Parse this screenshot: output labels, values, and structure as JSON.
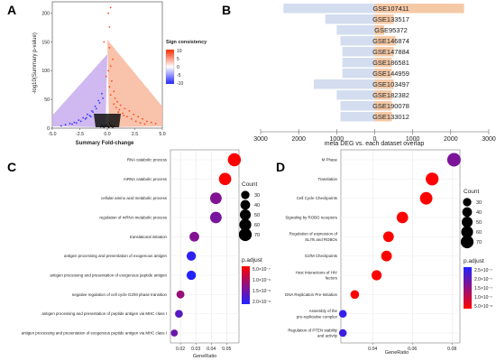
{
  "panels": {
    "a": "A",
    "b": "B",
    "c": "C",
    "d": "D"
  },
  "chart_data": [
    {
      "id": "A",
      "type": "scatter",
      "xlabel": "Summary Fold-change",
      "ylabel": "-log10(Summary p-value)",
      "xlim": [
        -5,
        5
      ],
      "ylim": [
        0,
        220
      ],
      "x_ticks": [
        "-5.0",
        "-2.5",
        "0.0",
        "2.5",
        "5.0"
      ],
      "y_ticks": [
        "0",
        "50",
        "100",
        "150",
        "200"
      ],
      "legend": {
        "title": "Sign consistency",
        "ticks": [
          "10",
          "5",
          "0",
          "-5",
          "-10"
        ],
        "range": [
          -10,
          10
        ],
        "colors": {
          "high": "#ff2a00",
          "mid": "#ffffff",
          "low": "#2222ff"
        }
      },
      "grid": false,
      "series": [
        {
          "points": [
            [
              0.3,
              210
            ],
            [
              0.1,
              200
            ],
            [
              0.2,
              176
            ],
            [
              -0.3,
              150
            ],
            [
              0.2,
              140
            ],
            [
              0.5,
              120
            ],
            [
              0.3,
              108
            ],
            [
              0.1,
              100
            ],
            [
              -0.1,
              90
            ],
            [
              0.4,
              82
            ],
            [
              0.2,
              72
            ],
            [
              0.6,
              64
            ],
            [
              0.3,
              58
            ],
            [
              0.7,
              52
            ],
            [
              0.9,
              46
            ],
            [
              1.2,
              40
            ],
            [
              1.6,
              34
            ],
            [
              2.0,
              30
            ],
            [
              2.4,
              24
            ],
            [
              2.8,
              20
            ],
            [
              3.2,
              16
            ],
            [
              3.6,
              12
            ],
            [
              4.0,
              10
            ],
            [
              4.4,
              8
            ],
            [
              0.8,
              36
            ],
            [
              1.4,
              26
            ],
            [
              1.8,
              20
            ],
            [
              2.2,
              16
            ],
            [
              2.6,
              12
            ],
            [
              3.0,
              9
            ],
            [
              3.4,
              7
            ],
            [
              1.0,
              28
            ],
            [
              1.5,
              22
            ],
            [
              0.6,
              42
            ],
            [
              1.1,
              32
            ]
          ]
        },
        {
          "points": [
            [
              -0.5,
              60
            ],
            [
              -0.8,
              48
            ],
            [
              -1.1,
              38
            ],
            [
              -1.4,
              30
            ],
            [
              -1.8,
              24
            ],
            [
              -2.2,
              18
            ],
            [
              -2.6,
              14
            ],
            [
              -3.0,
              10
            ],
            [
              -3.4,
              8
            ],
            [
              -3.8,
              6
            ],
            [
              -4.2,
              4
            ],
            [
              -1.0,
              34
            ],
            [
              -1.6,
              22
            ],
            [
              -2.0,
              16
            ],
            [
              -2.4,
              12
            ],
            [
              -2.8,
              9
            ],
            [
              -3.2,
              7
            ],
            [
              -0.7,
              44
            ],
            [
              -1.3,
              28
            ],
            [
              -1.9,
              18
            ],
            [
              -0.4,
              52
            ],
            [
              -1.5,
              20
            ]
          ]
        },
        {
          "points": [
            [
              -0.2,
              4
            ],
            [
              0.1,
              2
            ],
            [
              0.3,
              5
            ],
            [
              -0.4,
              3
            ],
            [
              0.5,
              1
            ],
            [
              -0.6,
              2
            ],
            [
              0.2,
              8
            ],
            [
              -0.1,
              6
            ],
            [
              0.4,
              3
            ],
            [
              -0.3,
              1
            ],
            [
              0.6,
              4
            ],
            [
              -0.5,
              5
            ],
            [
              0.0,
              3
            ],
            [
              0.15,
              1
            ]
          ]
        }
      ]
    },
    {
      "id": "B",
      "type": "bar",
      "xlabel": "meta DEG vs. each dataset overlap",
      "x_ticks": [
        "3000",
        "2000",
        "1000",
        "0",
        "1000",
        "2000",
        "3000"
      ],
      "xlim": [
        -3000,
        3000
      ],
      "categories": [
        "GSE107411",
        "GSE133517",
        "GSE95372",
        "GSE146874",
        "GSE147884",
        "GSE186581",
        "GSE144959",
        "GSE103497",
        "GSE182382",
        "GSE190078",
        "GSE133012"
      ],
      "series": [
        {
          "side": "left",
          "color": "#d3ddef",
          "values": [
            2400,
            1300,
            1000,
            900,
            850,
            850,
            850,
            1600,
            1000,
            900,
            900
          ]
        },
        {
          "side": "right",
          "color": "#f5c9a6",
          "values": [
            2350,
            500,
            250,
            550,
            500,
            450,
            450,
            500,
            450,
            450,
            450
          ]
        }
      ]
    },
    {
      "id": "C",
      "type": "scatter",
      "xlabel": "GeneRatio",
      "x_ticks": [
        "0.02",
        "0.03",
        "0.04",
        "0.05"
      ],
      "xlim": [
        0.0135,
        0.058
      ],
      "categories": [
        "RNA catabolic process",
        "mRNA catabolic process",
        "cellular amino acid metabolic process",
        "regulation of mRNA metabolic process",
        "translational initiation",
        "antigen processing and presentation of exogenous antigen",
        "antigen processing and presentation of exogenous peptide antigen",
        "negative regulation of cell cycle G2/M phase transition",
        "antigen processing and presentation of peptide antigen via MHC class I",
        "antigen processing and presentation of exogenous peptide antigen via MHC class I"
      ],
      "points": [
        {
          "x": 0.055,
          "count": 72,
          "p": 1e-11
        },
        {
          "x": 0.049,
          "count": 65,
          "p": 1e-10
        },
        {
          "x": 0.043,
          "count": 57,
          "p": 1.2e-06
        },
        {
          "x": 0.043,
          "count": 57,
          "p": 1.3e-06
        },
        {
          "x": 0.029,
          "count": 40,
          "p": 1.2e-06
        },
        {
          "x": 0.027,
          "count": 37,
          "p": 2e-06
        },
        {
          "x": 0.027,
          "count": 37,
          "p": 2.1e-06
        },
        {
          "x": 0.02,
          "count": 27,
          "p": 1e-06
        },
        {
          "x": 0.019,
          "count": 26,
          "p": 1.6e-06
        },
        {
          "x": 0.016,
          "count": 21,
          "p": 1.4e-06
        }
      ],
      "size_legend": {
        "title": "Count",
        "values": [
          "30",
          "40",
          "50",
          "60",
          "70"
        ]
      },
      "color_legend": {
        "title": "p.adjust",
        "ticks": [
          "5.0×10⁻⁷",
          "1.0×10⁻⁶",
          "1.5×10⁻⁶",
          "2.0×10⁻⁶"
        ],
        "range": [
          2.1e-06,
          1e-11
        ],
        "colors": {
          "low": "#ff0000",
          "high": "#2222ff"
        }
      }
    },
    {
      "id": "D",
      "type": "scatter",
      "xlabel": "GeneRatio",
      "x_ticks": [
        "0.04",
        "0.06",
        "0.08"
      ],
      "xlim": [
        0.024,
        0.084
      ],
      "categories": [
        "M Phase",
        "Translation",
        "Cell Cycle Checkpoints",
        "Signaling by ROBO receptors",
        "Regulation of expression of SLITs and ROBOs",
        "G2/M Checkpoints",
        "Host Interactions of HIV factors",
        "DNA Replication Pre-Initiation",
        "Assembly of the pre-replicative complex",
        "Regulation of PTEN stability and activity"
      ],
      "points": [
        {
          "x": 0.081,
          "count": 78,
          "p": 1.5e-07
        },
        {
          "x": 0.07,
          "count": 70,
          "p": 1e-09
        },
        {
          "x": 0.067,
          "count": 66,
          "p": 1e-09
        },
        {
          "x": 0.055,
          "count": 56,
          "p": 1e-09
        },
        {
          "x": 0.048,
          "count": 48,
          "p": 1e-09
        },
        {
          "x": 0.047,
          "count": 48,
          "p": 1e-09
        },
        {
          "x": 0.042,
          "count": 43,
          "p": 1e-09
        },
        {
          "x": 0.031,
          "count": 32,
          "p": 1e-09
        },
        {
          "x": 0.025,
          "count": 25,
          "p": 2.3e-07
        },
        {
          "x": 0.025,
          "count": 25,
          "p": 2.2e-07
        }
      ],
      "size_legend": {
        "title": "Count",
        "values": [
          "30",
          "40",
          "50",
          "60",
          "70"
        ]
      },
      "color_legend": {
        "title": "p.adjust",
        "ticks": [
          "2.5×10⁻⁷",
          "2.0×10⁻⁷",
          "1.5×10⁻⁷",
          "1.0×10⁻⁷",
          "5.0×10⁻⁸"
        ],
        "range": [
          2.5e-07,
          1e-09
        ],
        "colors": {
          "low": "#ff0000",
          "high": "#2222ff"
        }
      }
    }
  ]
}
